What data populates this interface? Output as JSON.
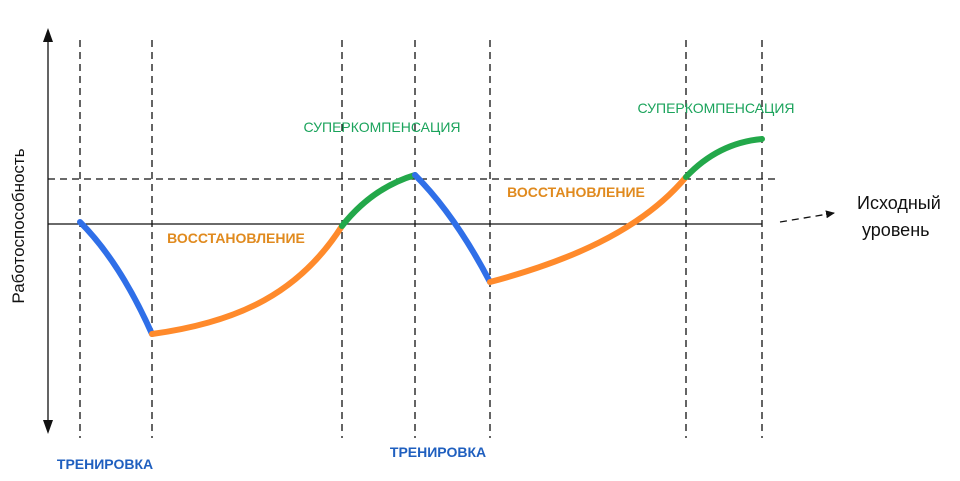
{
  "y_axis_label": "Работоспособность",
  "baseline_label": [
    "Исходный",
    "уровень"
  ],
  "phases": {
    "supercompensation": [
      "СУПЕРКОМПЕНСАЦИЯ",
      "СУПЕРКОМПЕНСАЦИЯ"
    ],
    "recovery": [
      "ВОССТАНОВЛЕНИЕ",
      "ВОССТАНОВЛЕНИЕ"
    ],
    "training": [
      "ТРЕНИРОВКА",
      "ТРЕНИРОВКА"
    ]
  }
}
